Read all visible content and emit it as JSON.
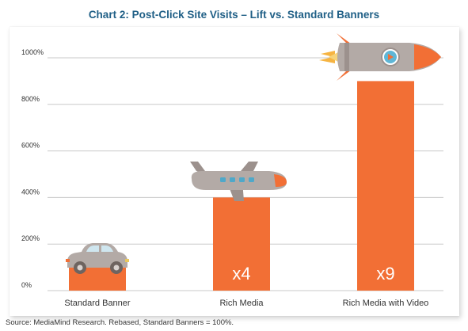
{
  "title": "Chart 2: Post-Click Site Visits – Lift vs. Standard Banners",
  "source": "Source:  MediaMind Research.  Rebased, Standard Banners = 100%.",
  "colors": {
    "bar": "#f26f35",
    "grid": "#c8c8c8",
    "title": "#1f5f86",
    "axis_text": "#333333",
    "icon_grey": "#b3aaa6"
  },
  "chart_data": {
    "type": "bar",
    "title": "Chart 2: Post-Click Site Visits – Lift vs. Standard Banners",
    "xlabel": "",
    "ylabel": "",
    "ylim": [
      0,
      1000
    ],
    "y_ticks": [
      0,
      200,
      400,
      600,
      800,
      1000
    ],
    "y_tick_labels": [
      "0%",
      "200%",
      "400%",
      "600%",
      "800%",
      "1000%"
    ],
    "categories": [
      "Standard Banner",
      "Rich Media",
      "Rich Media with Video"
    ],
    "values": [
      100,
      400,
      900
    ],
    "data_labels": [
      "",
      "x4",
      "x9"
    ],
    "icons": [
      "car-icon",
      "airplane-icon",
      "rocket-icon"
    ],
    "grid": true,
    "legend": "none"
  }
}
